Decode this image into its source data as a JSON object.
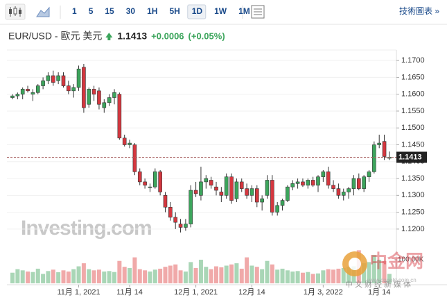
{
  "toolbar": {
    "intervals": [
      "1",
      "5",
      "15",
      "30",
      "1H",
      "5H",
      "1D",
      "1W",
      "1M"
    ],
    "active_index": 6,
    "link": "技術圖表 »"
  },
  "chart_data": {
    "type": "candlestick",
    "title": "EUR/USD - 歐元 美元",
    "last_price": 1.1413,
    "change": "+0.0006",
    "change_pct": "(+0.05%)",
    "up_color": "#3ca55c",
    "down_color": "#d5373f",
    "categories": [
      null,
      null,
      null,
      null,
      null,
      null,
      null,
      null,
      null,
      null,
      null,
      null,
      null,
      "11月 1, 2021",
      null,
      null,
      null,
      null,
      null,
      null,
      null,
      null,
      null,
      "11月 14",
      null,
      null,
      null,
      null,
      null,
      null,
      null,
      null,
      null,
      null,
      null,
      null,
      "12月 1, 2021",
      null,
      null,
      null,
      null,
      null,
      null,
      null,
      null,
      null,
      null,
      "12月 14",
      null,
      null,
      null,
      null,
      null,
      null,
      null,
      null,
      null,
      null,
      null,
      null,
      null,
      "1月 3, 2022",
      null,
      null,
      null,
      null,
      null,
      null,
      null,
      null,
      null,
      null,
      "1月 14",
      null,
      null
    ],
    "series": [
      {
        "name": "EUR/USD",
        "open": [
          1.159,
          1.1595,
          1.16,
          1.1615,
          1.16,
          1.1605,
          1.1625,
          1.164,
          1.1655,
          1.164,
          1.1655,
          1.1625,
          1.161,
          1.162,
          1.168,
          1.157,
          1.1615,
          1.161,
          1.156,
          1.1575,
          1.159,
          1.16,
          1.147,
          1.145,
          1.145,
          1.137,
          1.134,
          1.1325,
          1.1325,
          1.137,
          1.13,
          1.1265,
          1.1235,
          1.1215,
          1.1205,
          1.1215,
          1.1315,
          1.13,
          1.134,
          1.1345,
          1.1325,
          1.131,
          1.13,
          1.1355,
          1.129,
          1.134,
          1.132,
          1.13,
          1.132,
          1.128,
          1.13,
          1.1345,
          1.125,
          1.127,
          1.1285,
          1.1325,
          1.1335,
          1.134,
          1.133,
          1.1345,
          1.133,
          1.1355,
          1.137,
          1.133,
          1.132,
          1.13,
          1.131,
          1.132,
          1.135,
          1.132,
          1.1355,
          1.137,
          1.145,
          1.146,
          1.141
        ],
        "high": [
          1.16,
          1.1605,
          1.162,
          1.1625,
          1.1615,
          1.163,
          1.165,
          1.1665,
          1.167,
          1.1665,
          1.1665,
          1.164,
          1.163,
          1.1685,
          1.169,
          1.162,
          1.1625,
          1.162,
          1.1585,
          1.16,
          1.1615,
          1.1605,
          1.148,
          1.1465,
          1.1455,
          1.138,
          1.135,
          1.1335,
          1.138,
          1.1375,
          1.131,
          1.128,
          1.125,
          1.123,
          1.123,
          1.133,
          1.134,
          1.1385,
          1.136,
          1.1355,
          1.134,
          1.1325,
          1.1365,
          1.1365,
          1.135,
          1.135,
          1.1335,
          1.133,
          1.133,
          1.13,
          1.136,
          1.136,
          1.128,
          1.129,
          1.133,
          1.1345,
          1.135,
          1.135,
          1.135,
          1.1355,
          1.136,
          1.1375,
          1.1385,
          1.1345,
          1.1335,
          1.132,
          1.1325,
          1.136,
          1.1365,
          1.136,
          1.1375,
          1.146,
          1.148,
          1.148,
          1.143
        ],
        "low": [
          1.1585,
          1.1585,
          1.1585,
          1.1605,
          1.158,
          1.16,
          1.1615,
          1.163,
          1.1625,
          1.163,
          1.162,
          1.16,
          1.159,
          1.161,
          1.1545,
          1.156,
          1.158,
          1.1555,
          1.1545,
          1.1565,
          1.157,
          1.1465,
          1.1445,
          1.144,
          1.136,
          1.133,
          1.132,
          1.131,
          1.132,
          1.13,
          1.125,
          1.1225,
          1.12,
          1.119,
          1.1195,
          1.1205,
          1.1295,
          1.1285,
          1.132,
          1.132,
          1.13,
          1.128,
          1.129,
          1.1275,
          1.128,
          1.131,
          1.129,
          1.128,
          1.1265,
          1.1255,
          1.129,
          1.124,
          1.124,
          1.1255,
          1.128,
          1.1315,
          1.132,
          1.1325,
          1.132,
          1.1325,
          1.131,
          1.134,
          1.132,
          1.131,
          1.129,
          1.1285,
          1.129,
          1.13,
          1.1315,
          1.131,
          1.134,
          1.1365,
          1.144,
          1.1405,
          1.1405
        ],
        "close": [
          1.1595,
          1.16,
          1.1615,
          1.161,
          1.1605,
          1.1625,
          1.164,
          1.1655,
          1.1635,
          1.1655,
          1.1625,
          1.161,
          1.162,
          1.1675,
          1.156,
          1.1615,
          1.16,
          1.157,
          1.1575,
          1.159,
          1.1605,
          1.147,
          1.145,
          1.1455,
          1.137,
          1.134,
          1.133,
          1.1325,
          1.137,
          1.131,
          1.1265,
          1.1235,
          1.122,
          1.1205,
          1.1215,
          1.1315,
          1.1305,
          1.134,
          1.135,
          1.133,
          1.1315,
          1.13,
          1.1355,
          1.1285,
          1.134,
          1.132,
          1.13,
          1.132,
          1.128,
          1.129,
          1.1345,
          1.125,
          1.127,
          1.1285,
          1.1325,
          1.1335,
          1.134,
          1.133,
          1.1345,
          1.133,
          1.1355,
          1.137,
          1.133,
          1.132,
          1.13,
          1.131,
          1.132,
          1.135,
          1.132,
          1.1355,
          1.137,
          1.145,
          1.1455,
          1.1415,
          1.1413
        ]
      }
    ],
    "ylim": [
      1.1175,
      1.1725
    ],
    "yticks": [
      {
        "value": 1.12,
        "label": "1.1200"
      },
      {
        "value": 1.125,
        "label": "1.1250"
      },
      {
        "value": 1.13,
        "label": "1.1300"
      },
      {
        "value": 1.135,
        "label": "1.1350"
      },
      {
        "value": 1.14,
        "label": "1.1400"
      },
      {
        "value": 1.145,
        "label": "1.1450"
      },
      {
        "value": 1.15,
        "label": "1.1500"
      },
      {
        "value": 1.155,
        "label": "1.1550"
      },
      {
        "value": 1.16,
        "label": "1.1600"
      },
      {
        "value": 1.165,
        "label": "1.1650"
      },
      {
        "value": 1.17,
        "label": "1.1700"
      }
    ],
    "volume": {
      "values": [
        45,
        60,
        55,
        50,
        48,
        62,
        40,
        52,
        58,
        47,
        55,
        50,
        60,
        72,
        85,
        60,
        55,
        58,
        50,
        52,
        48,
        95,
        70,
        65,
        110,
        60,
        55,
        50,
        58,
        62,
        70,
        75,
        80,
        55,
        50,
        90,
        65,
        100,
        70,
        60,
        72,
        68,
        75,
        80,
        85,
        62,
        110,
        75,
        70,
        60,
        95,
        80,
        58,
        62,
        55,
        50,
        52,
        45,
        48,
        40,
        42,
        55,
        60,
        58,
        62,
        65,
        70,
        72,
        140,
        85,
        90,
        120,
        100,
        95,
        40
      ],
      "ylim": [
        0,
        150
      ],
      "yticks": [
        {
          "value": 100,
          "label": "100.00K"
        }
      ],
      "up_color": "#a9d6b6",
      "down_color": "#f0a9a9"
    }
  },
  "watermarks": {
    "brand": "Investing.com",
    "logo": "中金网",
    "slogan": "中文财经新媒体",
    "site": "www.cngold.com.cn"
  }
}
